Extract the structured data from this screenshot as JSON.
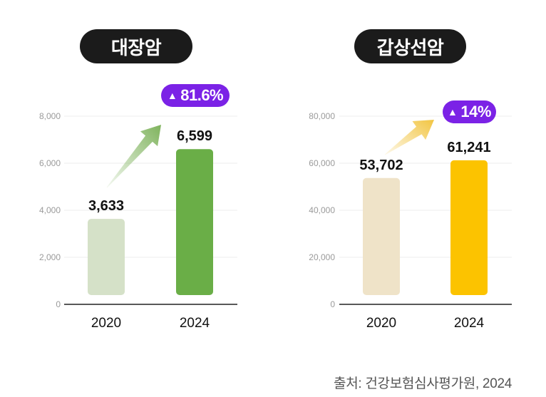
{
  "chart_data": [
    {
      "type": "bar",
      "title": "대장암",
      "categories": [
        "2020",
        "2024"
      ],
      "values": [
        3633,
        6599
      ],
      "value_labels": [
        "3,633",
        "6,599"
      ],
      "yticks": [
        "0",
        "2,000",
        "4,000",
        "6,000",
        "8,000"
      ],
      "ylim": [
        0,
        8000
      ],
      "grid": true,
      "bar_colors": [
        "#d5e1c8",
        "#6aae47"
      ],
      "change_badge": "81.6%",
      "badge_color": "#7b22e6",
      "arrow_color": "#7fb35d"
    },
    {
      "type": "bar",
      "title": "갑상선암",
      "categories": [
        "2020",
        "2024"
      ],
      "values": [
        53702,
        61241
      ],
      "value_labels": [
        "53,702",
        "61,241"
      ],
      "yticks": [
        "0",
        "20,000",
        "40,000",
        "60,000",
        "80,000"
      ],
      "ylim": [
        0,
        80000
      ],
      "grid": true,
      "bar_colors": [
        "#efe3c8",
        "#fcc300"
      ],
      "change_badge": "14%",
      "badge_color": "#7b22e6",
      "arrow_color": "#f2c542"
    }
  ],
  "badge_triangle": "▲",
  "source": "출처: 건강보험심사평가원, 2024"
}
